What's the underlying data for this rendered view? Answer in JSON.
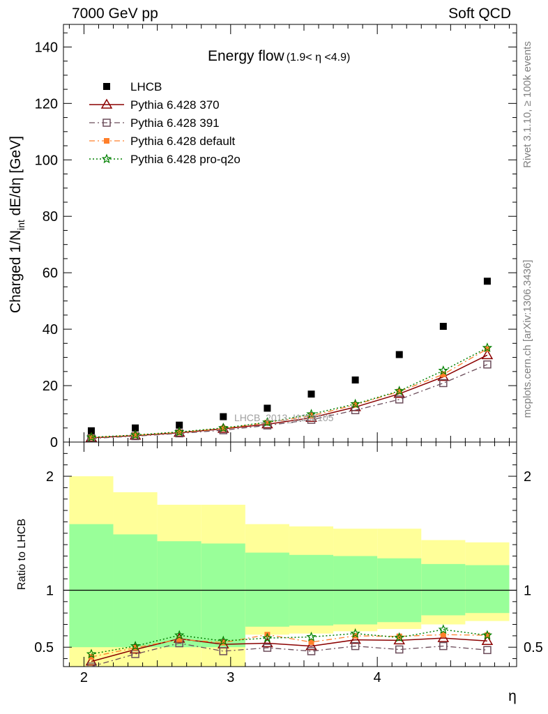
{
  "header": {
    "left": "7000 GeV pp",
    "right": "Soft QCD"
  },
  "side_labels": {
    "rivet": "Rivet 3.1.10, ≥ 100k events",
    "mcplots": "mcplots.cern.ch [arXiv:1306.3436]"
  },
  "watermark": "LHCB_2013_I1208105",
  "colors": {
    "data": "#000000",
    "p370": "#8b0000",
    "p391": "#6b4c5a",
    "pdefault": "#ff7f2a",
    "pq2o": "#008000",
    "band_inner": "#99ff99",
    "band_outer": "#ffff99"
  },
  "chart_data": [
    {
      "type": "scatter",
      "title": "Energy flow",
      "title_suffix": "(1.9< η <4.9)",
      "ylabel_pre": "Charged 1/N",
      "ylabel_sub": "int",
      "ylabel_post": " dE/dη [GeV]",
      "xlabel": "η",
      "xlim": [
        1.86,
        4.95
      ],
      "ylim": [
        0,
        148
      ],
      "yticks": [
        0,
        20,
        40,
        60,
        80,
        100,
        120,
        140
      ],
      "xticks": [
        2,
        3,
        4
      ],
      "grid": false,
      "legend_position": "top-left",
      "x": [
        2.05,
        2.35,
        2.65,
        2.95,
        3.25,
        3.55,
        3.85,
        4.15,
        4.45,
        4.75
      ],
      "series": [
        {
          "name": "LHCB",
          "key": "data",
          "values": [
            4.0,
            5.0,
            6.0,
            9.0,
            12.0,
            17.0,
            22.0,
            31.0,
            41.0,
            57.0
          ]
        },
        {
          "name": "Pythia 6.428 370",
          "key": "p370",
          "values": [
            1.5,
            2.3,
            3.3,
            4.7,
            6.3,
            8.6,
            12.4,
            17.1,
            23.1,
            30.8
          ]
        },
        {
          "name": "Pythia 6.428 391",
          "key": "p391",
          "values": [
            1.3,
            2.1,
            3.1,
            4.2,
            5.9,
            7.9,
            11.3,
            15.1,
            20.9,
            27.5
          ]
        },
        {
          "name": "Pythia 6.428 default",
          "key": "pdefault",
          "values": [
            1.6,
            2.4,
            3.4,
            4.8,
            6.9,
            9.3,
            13.2,
            17.9,
            24.0,
            33.0
          ]
        },
        {
          "name": "Pythia 6.428 pro-q2o",
          "key": "pq2o",
          "values": [
            1.7,
            2.5,
            3.6,
            5.0,
            7.0,
            9.9,
            13.5,
            18.1,
            25.3,
            33.4
          ]
        }
      ]
    },
    {
      "type": "line",
      "ylabel": "Ratio to LHCB",
      "xlabel": "η",
      "xlim": [
        1.86,
        4.95
      ],
      "ylim": [
        0.33,
        2.3
      ],
      "yticks": [
        0.5,
        1,
        2
      ],
      "xticks": [
        2,
        3,
        4
      ],
      "reference_line": 1.0,
      "bins": [
        [
          1.9,
          2.2
        ],
        [
          2.2,
          2.5
        ],
        [
          2.5,
          2.8
        ],
        [
          2.8,
          3.1
        ],
        [
          3.1,
          3.4
        ],
        [
          3.4,
          3.7
        ],
        [
          3.7,
          4.0
        ],
        [
          4.0,
          4.3
        ],
        [
          4.3,
          4.6
        ],
        [
          4.6,
          4.9
        ]
      ],
      "band_inner": {
        "low": [
          0.5,
          0.5,
          0.5,
          0.5,
          0.68,
          0.69,
          0.7,
          0.72,
          0.78,
          0.8
        ],
        "high": [
          1.58,
          1.49,
          1.43,
          1.41,
          1.33,
          1.31,
          1.3,
          1.28,
          1.23,
          1.22
        ]
      },
      "band_outer": {
        "low": [
          0.0,
          0.0,
          0.0,
          0.0,
          0.61,
          0.62,
          0.64,
          0.66,
          0.7,
          0.73
        ],
        "high": [
          2.0,
          1.86,
          1.75,
          1.75,
          1.58,
          1.56,
          1.54,
          1.54,
          1.44,
          1.42
        ]
      },
      "series": [
        {
          "name": "Pythia 6.428 370",
          "key": "p370",
          "values": [
            0.375,
            0.48,
            0.575,
            0.525,
            0.535,
            0.51,
            0.565,
            0.56,
            0.58,
            0.555
          ]
        },
        {
          "name": "Pythia 6.428 391",
          "key": "p391",
          "values": [
            0.33,
            0.44,
            0.535,
            0.465,
            0.495,
            0.465,
            0.51,
            0.48,
            0.51,
            0.475
          ]
        },
        {
          "name": "Pythia 6.428 default",
          "key": "pdefault",
          "values": [
            0.415,
            0.495,
            0.57,
            0.54,
            0.61,
            0.545,
            0.6,
            0.595,
            0.61,
            0.605
          ]
        },
        {
          "name": "Pythia 6.428 pro-q2o",
          "key": "pq2o",
          "values": [
            0.44,
            0.51,
            0.605,
            0.555,
            0.58,
            0.59,
            0.62,
            0.585,
            0.655,
            0.605
          ]
        }
      ]
    }
  ]
}
